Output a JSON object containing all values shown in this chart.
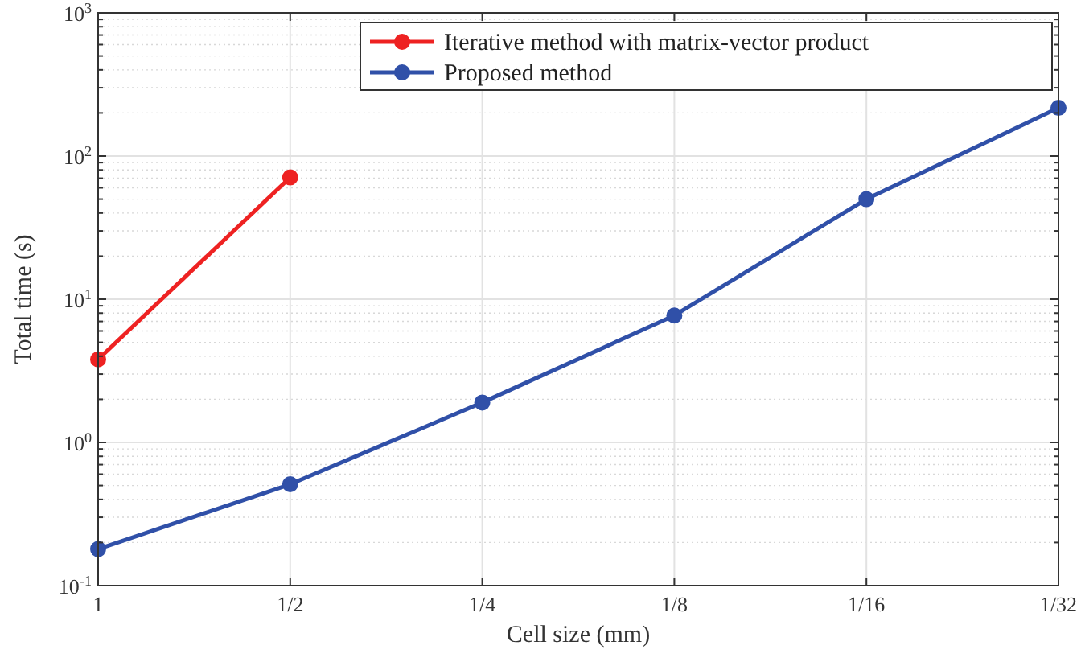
{
  "chart_data": {
    "type": "line",
    "xlabel": "Cell size (mm)",
    "ylabel": "Total time (s)",
    "x": [
      1,
      0.5,
      0.25,
      0.125,
      0.0625,
      0.03125
    ],
    "series": [
      {
        "name": "Iterative method with matrix-vector product",
        "color": "#ee2222",
        "x": [
          1,
          0.5
        ],
        "values": [
          3.8,
          71
        ]
      },
      {
        "name": "Proposed method",
        "color": "#3050a8",
        "values": [
          0.18,
          0.51,
          1.9,
          7.7,
          50,
          217
        ]
      }
    ],
    "log": "xy",
    "xlim": [
      1,
      0.03125
    ],
    "ylim": [
      0.1,
      1000
    ],
    "xticks": [
      1,
      {
        "value": 0.5,
        "label": "1/2"
      },
      {
        "value": 0.25,
        "label": "1/4"
      },
      {
        "value": 0.125,
        "label": "1/8"
      },
      {
        "value": 0.0625,
        "label": "1/16"
      },
      {
        "value": 0.03125,
        "label": "1/32"
      }
    ],
    "yticks": [
      {
        "value": 0.1,
        "label": "10$^{-1}$"
      },
      {
        "value": 1,
        "label": "10$^{0}$"
      },
      {
        "value": 10,
        "label": "10$^{1}$"
      },
      {
        "value": 100,
        "label": "10$^{2}$"
      },
      {
        "value": 1000,
        "label": "10$^{3}$"
      }
    ],
    "grid": true,
    "legend": "top right",
    "marker": "circle",
    "line_style": "solid"
  }
}
